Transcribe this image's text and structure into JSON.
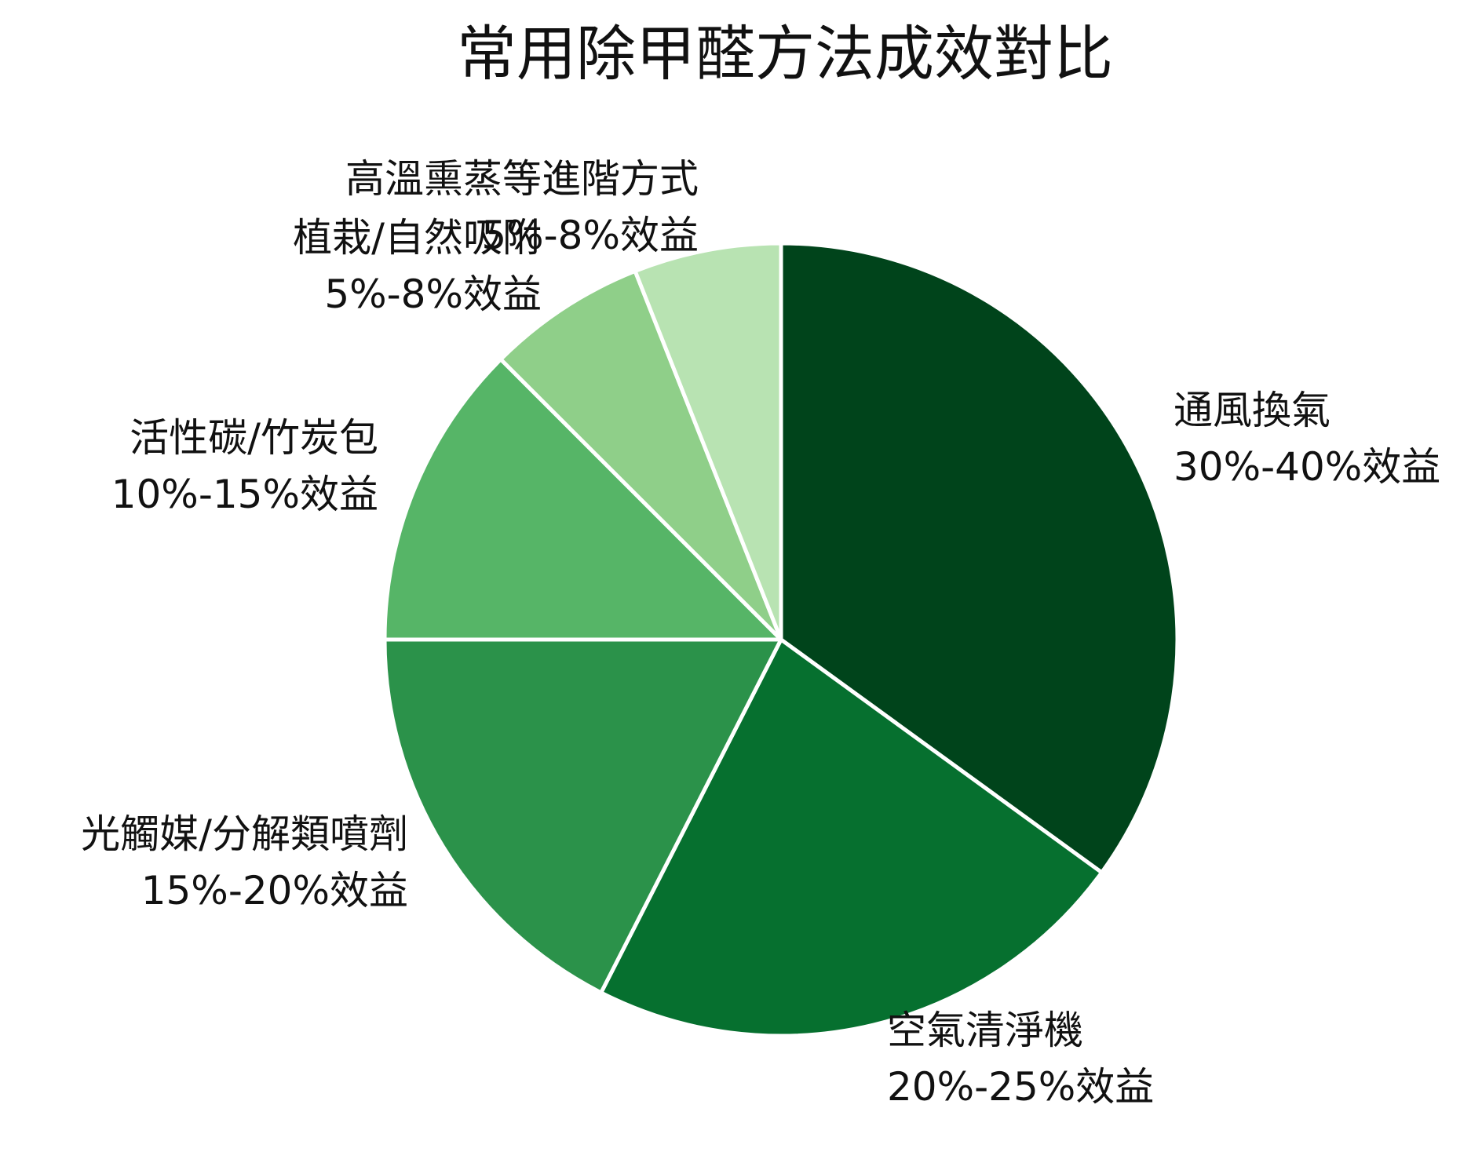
{
  "chart_data": {
    "type": "pie",
    "title": "常用除甲醛方法成效對比",
    "start_angle_deg": 90,
    "direction": "clockwise",
    "slices": [
      {
        "name": "通風換氣",
        "value": 35,
        "label_lines": [
          "通風換氣",
          "30%-40%效益"
        ],
        "color": "#00441b"
      },
      {
        "name": "空氣清淨機",
        "value": 22.5,
        "label_lines": [
          "空氣清淨機",
          "20%-25%效益"
        ],
        "color": "#06702f"
      },
      {
        "name": "光觸媒/分解類噴劑",
        "value": 17.5,
        "label_lines": [
          "光觸媒/分解類噴劑",
          "15%-20%效益"
        ],
        "color": "#2b924a"
      },
      {
        "name": "活性碳/竹炭包",
        "value": 12.5,
        "label_lines": [
          "活性碳/竹炭包",
          "10%-15%效益"
        ],
        "color": "#56b567"
      },
      {
        "name": "植栽/自然吸附",
        "value": 6.5,
        "label_lines": [
          "植栽/自然吸附",
          "5%-8%效益"
        ],
        "color": "#8fcf89"
      },
      {
        "name": "高溫熏蒸等進階方式",
        "value": 6.0,
        "label_lines": [
          "高溫熏蒸等進階方式",
          "5%-8%效益"
        ],
        "color": "#b8e3b2"
      }
    ]
  }
}
